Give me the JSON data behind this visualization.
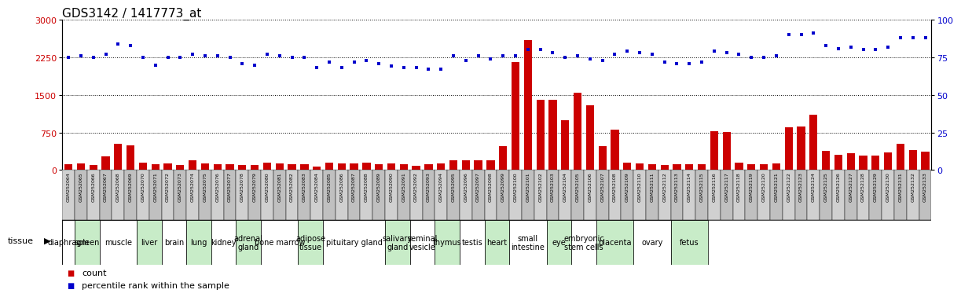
{
  "title": "GDS3142 / 1417773_at",
  "gsm_ids": [
    "GSM252064",
    "GSM252065",
    "GSM252066",
    "GSM252067",
    "GSM252068",
    "GSM252069",
    "GSM252070",
    "GSM252071",
    "GSM252072",
    "GSM252073",
    "GSM252074",
    "GSM252075",
    "GSM252076",
    "GSM252077",
    "GSM252078",
    "GSM252079",
    "GSM252080",
    "GSM252081",
    "GSM252082",
    "GSM252083",
    "GSM252084",
    "GSM252085",
    "GSM252086",
    "GSM252087",
    "GSM252088",
    "GSM252089",
    "GSM252090",
    "GSM252091",
    "GSM252092",
    "GSM252093",
    "GSM252094",
    "GSM252095",
    "GSM252096",
    "GSM252097",
    "GSM252098",
    "GSM252099",
    "GSM252100",
    "GSM252101",
    "GSM252102",
    "GSM252103",
    "GSM252104",
    "GSM252105",
    "GSM252106",
    "GSM252107",
    "GSM252108",
    "GSM252109",
    "GSM252110",
    "GSM252111",
    "GSM252112",
    "GSM252113",
    "GSM252114",
    "GSM252115",
    "GSM252116",
    "GSM252117",
    "GSM252118",
    "GSM252119",
    "GSM252120",
    "GSM252121",
    "GSM252122",
    "GSM252123",
    "GSM252124",
    "GSM252125",
    "GSM252126",
    "GSM252127",
    "GSM252128",
    "GSM252129",
    "GSM252130",
    "GSM252131",
    "GSM252132",
    "GSM252133"
  ],
  "bar_values": [
    120,
    130,
    95,
    280,
    530,
    490,
    150,
    120,
    130,
    105,
    190,
    130,
    110,
    120,
    105,
    100,
    145,
    130,
    115,
    110,
    70,
    140,
    130,
    130,
    155,
    120,
    130,
    120,
    90,
    110,
    130,
    200,
    200,
    200,
    200,
    480,
    2150,
    2600,
    1400,
    1400,
    1000,
    1550,
    1300,
    480,
    800,
    150,
    135,
    110,
    100,
    110,
    110,
    115,
    770,
    760,
    155,
    115,
    120,
    130,
    850,
    870,
    1100,
    380,
    310,
    340,
    285,
    290,
    350,
    530,
    400,
    360
  ],
  "percentile_values": [
    75,
    76,
    75,
    77,
    84,
    83,
    75,
    70,
    75,
    75,
    77,
    76,
    76,
    75,
    71,
    70,
    77,
    76,
    75,
    75,
    68,
    72,
    68,
    72,
    73,
    71,
    69,
    68,
    68,
    67,
    67,
    76,
    73,
    76,
    74,
    76,
    76,
    80,
    80,
    78,
    75,
    76,
    74,
    73,
    77,
    79,
    78,
    77,
    72,
    71,
    71,
    72,
    79,
    78,
    77,
    75,
    75,
    76,
    90,
    90,
    91,
    83,
    81,
    82,
    80,
    80,
    82,
    88,
    88,
    88
  ],
  "tissues": [
    {
      "name": "diaphragm",
      "start": 0,
      "end": 1
    },
    {
      "name": "spleen",
      "start": 1,
      "end": 3
    },
    {
      "name": "muscle",
      "start": 3,
      "end": 6
    },
    {
      "name": "liver",
      "start": 6,
      "end": 8
    },
    {
      "name": "brain",
      "start": 8,
      "end": 10
    },
    {
      "name": "lung",
      "start": 10,
      "end": 12
    },
    {
      "name": "kidney",
      "start": 12,
      "end": 14
    },
    {
      "name": "adrenal\ngland",
      "start": 14,
      "end": 16
    },
    {
      "name": "bone marrow",
      "start": 16,
      "end": 19
    },
    {
      "name": "adipose\ntissue",
      "start": 19,
      "end": 21
    },
    {
      "name": "pituitary gland",
      "start": 21,
      "end": 26
    },
    {
      "name": "salivary\ngland",
      "start": 26,
      "end": 28
    },
    {
      "name": "seminal\nvesicle",
      "start": 28,
      "end": 30
    },
    {
      "name": "thymus",
      "start": 30,
      "end": 32
    },
    {
      "name": "testis",
      "start": 32,
      "end": 34
    },
    {
      "name": "heart",
      "start": 34,
      "end": 36
    },
    {
      "name": "small\nintestine",
      "start": 36,
      "end": 39
    },
    {
      "name": "eye",
      "start": 39,
      "end": 41
    },
    {
      "name": "embryonic\nstem cells",
      "start": 41,
      "end": 43
    },
    {
      "name": "placenta",
      "start": 43,
      "end": 46
    },
    {
      "name": "ovary",
      "start": 46,
      "end": 49
    },
    {
      "name": "fetus",
      "start": 49,
      "end": 52
    }
  ],
  "tissue_colors": [
    "#ffffff",
    "#c8ecc8",
    "#ffffff",
    "#c8ecc8",
    "#ffffff",
    "#c8ecc8",
    "#ffffff",
    "#c8ecc8",
    "#ffffff",
    "#c8ecc8",
    "#ffffff",
    "#c8ecc8",
    "#ffffff",
    "#c8ecc8",
    "#ffffff",
    "#c8ecc8",
    "#ffffff",
    "#c8ecc8",
    "#ffffff",
    "#c8ecc8",
    "#ffffff",
    "#c8ecc8"
  ],
  "bar_color": "#cc0000",
  "dot_color": "#0000cc",
  "gsm_bg_color": "#c8c8c8",
  "ylim_left": [
    0,
    3000
  ],
  "ylim_right": [
    0,
    100
  ],
  "yticks_left": [
    0,
    750,
    1500,
    2250,
    3000
  ],
  "yticks_right": [
    0,
    25,
    50,
    75,
    100
  ],
  "title_fontsize": 11,
  "axis_label_fontsize": 8,
  "gsm_fontsize": 4.5,
  "tissue_fontsize": 7.0,
  "legend_fontsize": 8
}
